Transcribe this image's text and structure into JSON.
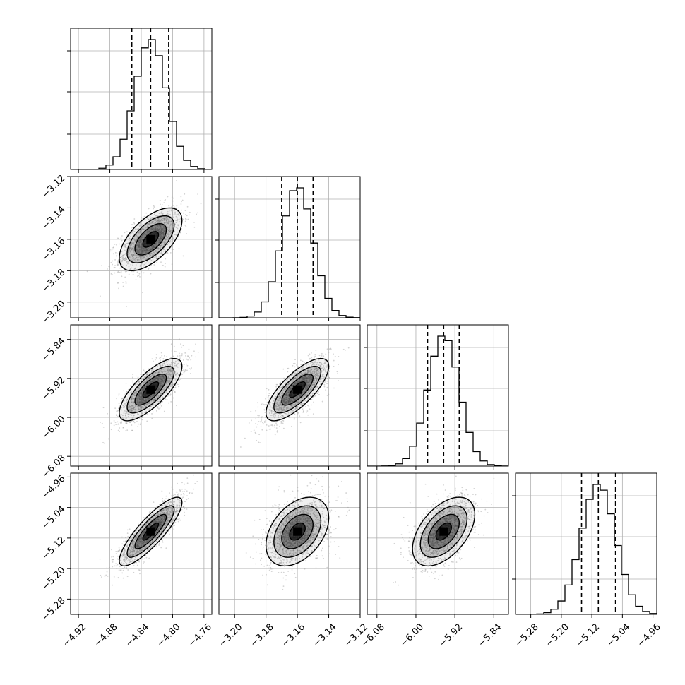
{
  "chart_data": {
    "type": "scatter",
    "variant": "corner-plot",
    "title": "",
    "grid": true,
    "params": [
      {
        "range": [
          -4.93,
          -4.75
        ],
        "ticks": [
          -4.92,
          -4.88,
          -4.84,
          -4.8,
          -4.76
        ],
        "tick_labels": [
          "−4.92",
          "−4.88",
          "−4.84",
          "−4.80",
          "−4.76"
        ],
        "quantiles": [
          -4.852,
          -4.828,
          -4.805
        ],
        "median": -4.828,
        "sigma": 0.02
      },
      {
        "range": [
          -3.21,
          -3.12
        ],
        "ticks": [
          -3.2,
          -3.18,
          -3.16,
          -3.14,
          -3.12
        ],
        "tick_labels": [
          "−3.20",
          "−3.18",
          "−3.16",
          "−3.14",
          "−3.12"
        ],
        "quantiles": [
          -3.17,
          -3.16,
          -3.15
        ],
        "median": -3.16,
        "sigma": 0.01
      },
      {
        "range": [
          -6.1,
          -5.81
        ],
        "ticks": [
          -6.08,
          -6.0,
          -5.92,
          -5.84
        ],
        "tick_labels": [
          "−6.08",
          "−6.00",
          "−5.92",
          "−5.84"
        ],
        "quantiles": [
          -5.976,
          -5.943,
          -5.911
        ],
        "median": -5.943,
        "sigma": 0.032
      },
      {
        "range": [
          -5.32,
          -4.95
        ],
        "ticks": [
          -5.28,
          -5.2,
          -5.12,
          -5.04,
          -4.96
        ],
        "tick_labels": [
          "−5.28",
          "−5.20",
          "−5.12",
          "−5.04",
          "−4.96"
        ],
        "quantiles": [
          -5.147,
          -5.103,
          -5.058
        ],
        "median": -5.103,
        "sigma": 0.045
      }
    ],
    "correlations": [
      [
        1,
        0.6,
        0.75,
        0.85
      ],
      [
        0.6,
        1,
        0.75,
        0.4
      ],
      [
        0.75,
        0.75,
        1,
        0.5
      ],
      [
        0.85,
        0.4,
        0.5,
        1
      ]
    ],
    "contour_levels": [
      0.5,
      1.0,
      1.5,
      2.0
    ],
    "histogram_color": "#000000",
    "quantile_line_style": "dashed",
    "point_color": "#9e9e9e",
    "fill_color": "#000000",
    "contour_color": "#000000",
    "grid_color": "#b0b0b0"
  }
}
